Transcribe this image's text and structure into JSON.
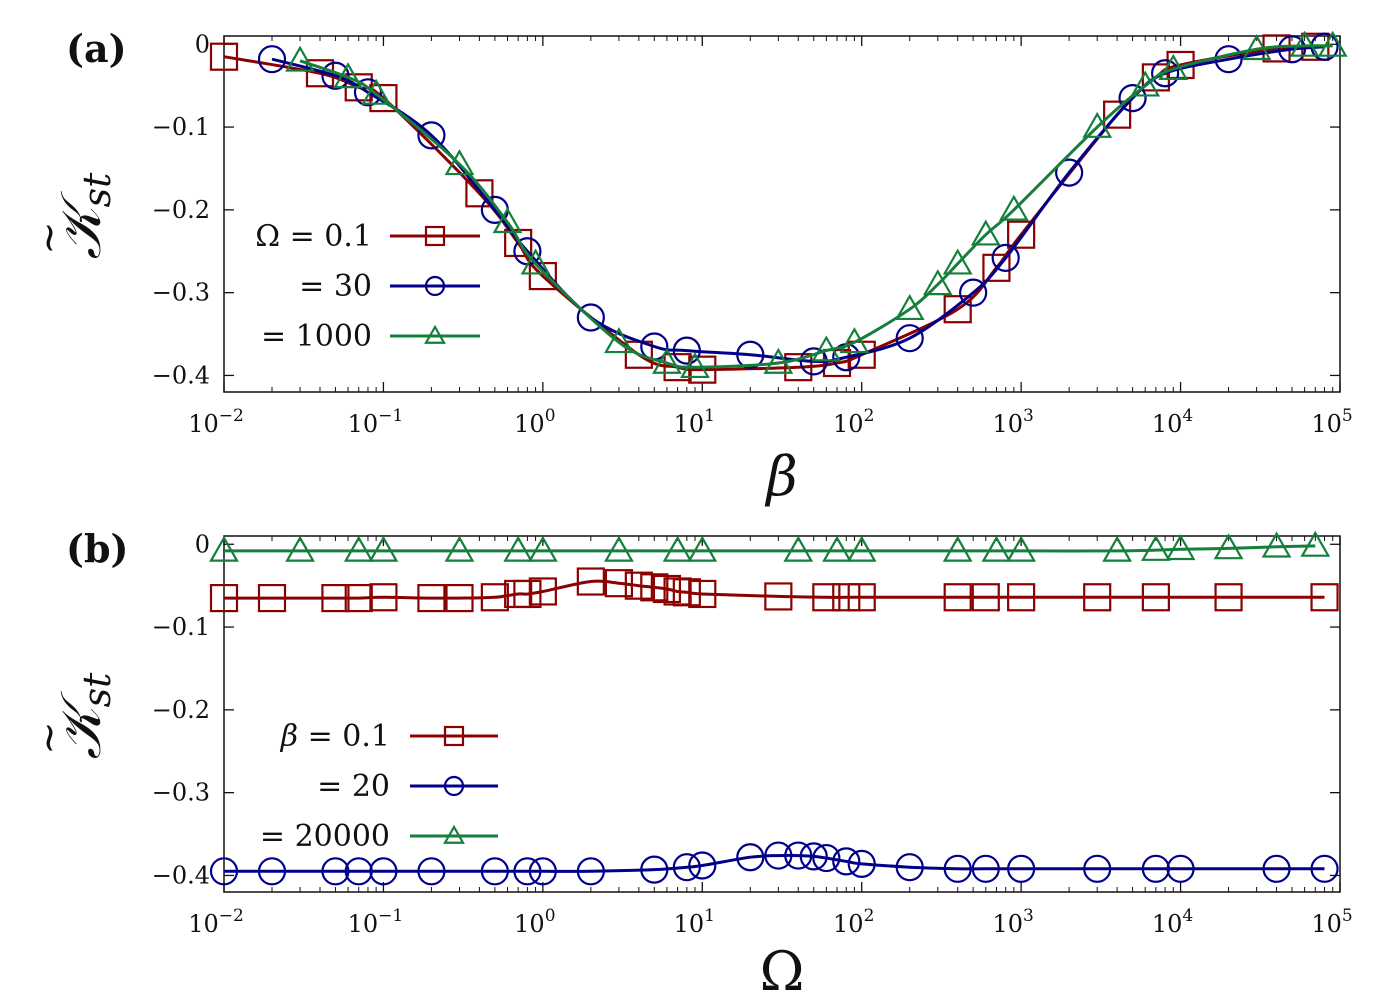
{
  "colors": {
    "red": "#8b0000",
    "blue": "#00008b",
    "green": "#157f3b",
    "axis": "#111111"
  },
  "chart_data": [
    {
      "type": "line",
      "panel_label": "(a)",
      "xlabel": "β",
      "ylabel_base": "𝒦",
      "ylabel_sub": "st",
      "x_scale": "log",
      "xlim": [
        0.01,
        100000
      ],
      "ylim": [
        -0.42,
        0.01
      ],
      "x_ticks": [
        0.01,
        0.1,
        1,
        10,
        100,
        1000,
        10000,
        100000
      ],
      "x_tick_exps": [
        "−2",
        "−1",
        "0",
        "1",
        "2",
        "3",
        "4",
        "5"
      ],
      "y_ticks": [
        0,
        -0.1,
        -0.2,
        -0.3,
        -0.4
      ],
      "y_tick_labels": [
        "0",
        "−0.1",
        "−0.2",
        "−0.3",
        "−0.4"
      ],
      "legend_position": "left-middle",
      "legend_header": "Ω",
      "series": [
        {
          "name": "= 0.1",
          "marker": "square",
          "color": "#8b0000",
          "x": [
            0.01,
            0.04,
            0.07,
            0.1,
            0.4,
            0.7,
            1,
            4,
            7,
            10,
            40,
            70,
            100,
            400,
            700,
            1000,
            4000,
            7000,
            10000,
            40000,
            70000
          ],
          "y": [
            -0.015,
            -0.035,
            -0.052,
            -0.065,
            -0.18,
            -0.24,
            -0.28,
            -0.375,
            -0.39,
            -0.393,
            -0.39,
            -0.385,
            -0.375,
            -0.32,
            -0.27,
            -0.23,
            -0.085,
            -0.04,
            -0.025,
            -0.005,
            -0.003
          ]
        },
        {
          "name": "= 30",
          "marker": "circle",
          "color": "#00008b",
          "x": [
            0.02,
            0.05,
            0.08,
            0.2,
            0.5,
            0.8,
            2,
            5,
            8,
            20,
            50,
            80,
            200,
            500,
            800,
            2000,
            5000,
            8000,
            20000,
            50000,
            80000
          ],
          "y": [
            -0.018,
            -0.038,
            -0.058,
            -0.11,
            -0.2,
            -0.25,
            -0.33,
            -0.365,
            -0.37,
            -0.375,
            -0.383,
            -0.378,
            -0.355,
            -0.3,
            -0.258,
            -0.155,
            -0.065,
            -0.035,
            -0.018,
            -0.006,
            -0.003
          ]
        },
        {
          "name": "= 1000",
          "marker": "triangle",
          "color": "#157f3b",
          "x": [
            0.03,
            0.06,
            0.09,
            0.3,
            0.6,
            0.9,
            3,
            6,
            9,
            30,
            60,
            90,
            200,
            300,
            400,
            600,
            900,
            3000,
            6000,
            9000,
            30000,
            60000,
            90000
          ],
          "y": [
            -0.02,
            -0.04,
            -0.06,
            -0.145,
            -0.215,
            -0.265,
            -0.36,
            -0.385,
            -0.39,
            -0.385,
            -0.37,
            -0.36,
            -0.32,
            -0.29,
            -0.265,
            -0.23,
            -0.2,
            -0.1,
            -0.05,
            -0.03,
            -0.006,
            -0.002,
            -0.002
          ]
        }
      ]
    },
    {
      "type": "line",
      "panel_label": "(b)",
      "xlabel": "Ω",
      "ylabel_base": "𝒦",
      "ylabel_sub": "st",
      "x_scale": "log",
      "xlim": [
        0.01,
        100000
      ],
      "ylim": [
        -0.42,
        0.01
      ],
      "x_ticks": [
        0.01,
        0.1,
        1,
        10,
        100,
        1000,
        10000,
        100000
      ],
      "x_tick_exps": [
        "−2",
        "−1",
        "0",
        "1",
        "2",
        "3",
        "4",
        "5"
      ],
      "y_ticks": [
        0,
        -0.1,
        -0.2,
        -0.3,
        -0.4
      ],
      "y_tick_labels": [
        "0",
        "−0.1",
        "−0.2",
        "−0.3",
        "−0.4"
      ],
      "legend_position": "left-middle",
      "legend_header": "β",
      "series": [
        {
          "name": "= 0.1",
          "marker": "square",
          "color": "#8b0000",
          "x": [
            0.01,
            0.02,
            0.05,
            0.07,
            0.1,
            0.2,
            0.3,
            0.5,
            0.7,
            0.8,
            1,
            2,
            3,
            4,
            5,
            6,
            7,
            8,
            10,
            30,
            60,
            80,
            100,
            400,
            600,
            1000,
            3000,
            7000,
            20000,
            80000
          ],
          "y": [
            -0.065,
            -0.065,
            -0.065,
            -0.065,
            -0.064,
            -0.065,
            -0.065,
            -0.064,
            -0.06,
            -0.06,
            -0.057,
            -0.045,
            -0.047,
            -0.05,
            -0.052,
            -0.054,
            -0.057,
            -0.058,
            -0.06,
            -0.063,
            -0.064,
            -0.064,
            -0.064,
            -0.064,
            -0.064,
            -0.064,
            -0.064,
            -0.064,
            -0.064,
            -0.064
          ]
        },
        {
          "name": "= 20",
          "marker": "circle",
          "color": "#00008b",
          "x": [
            0.01,
            0.02,
            0.05,
            0.07,
            0.1,
            0.2,
            0.5,
            0.8,
            1,
            2,
            5,
            8,
            10,
            20,
            30,
            40,
            50,
            60,
            80,
            100,
            200,
            400,
            600,
            1000,
            3000,
            7000,
            10000,
            40000,
            80000
          ],
          "y": [
            -0.395,
            -0.395,
            -0.395,
            -0.395,
            -0.395,
            -0.395,
            -0.395,
            -0.395,
            -0.395,
            -0.395,
            -0.393,
            -0.39,
            -0.388,
            -0.378,
            -0.376,
            -0.376,
            -0.377,
            -0.379,
            -0.383,
            -0.386,
            -0.39,
            -0.392,
            -0.392,
            -0.392,
            -0.392,
            -0.392,
            -0.392,
            -0.392,
            -0.392
          ]
        },
        {
          "name": "= 20000",
          "marker": "triangle",
          "color": "#157f3b",
          "x": [
            0.01,
            0.03,
            0.07,
            0.1,
            0.3,
            0.7,
            1,
            3,
            7,
            10,
            40,
            70,
            100,
            400,
            700,
            1000,
            4000,
            7000,
            10000,
            20000,
            40000,
            70000
          ],
          "y": [
            -0.008,
            -0.008,
            -0.008,
            -0.008,
            -0.008,
            -0.008,
            -0.008,
            -0.008,
            -0.008,
            -0.008,
            -0.008,
            -0.008,
            -0.008,
            -0.008,
            -0.008,
            -0.008,
            -0.008,
            -0.007,
            -0.006,
            -0.005,
            -0.003,
            -0.002
          ]
        }
      ]
    }
  ]
}
